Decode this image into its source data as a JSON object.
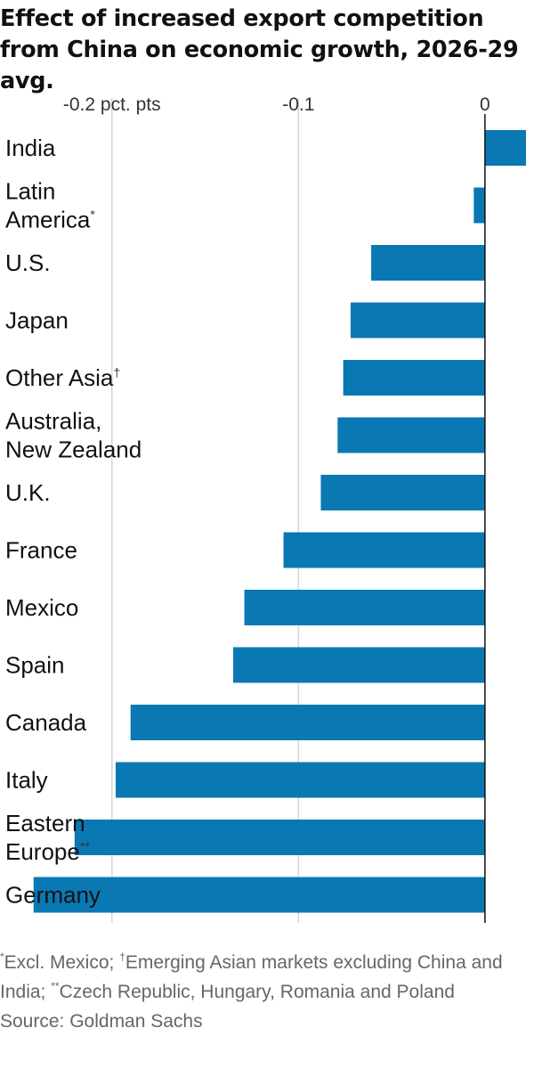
{
  "title": "Effect of increased export competition from China on economic growth, 2026-29 avg.",
  "colors": {
    "bar": "#0a78b2",
    "gridline": "#d6d6d6",
    "zero_line": "#111111"
  },
  "chart_data": {
    "type": "bar",
    "orientation": "horizontal",
    "title": "Effect of increased export competition from China on economic growth, 2026-29 avg.",
    "xlabel": "",
    "ylabel": "",
    "unit": "pct. pts",
    "categories": [
      "India",
      "Latin America*",
      "U.S.",
      "Japan",
      "Other Asia†",
      "Australia, New Zealand",
      "U.K.",
      "France",
      "Mexico",
      "Spain",
      "Canada",
      "Italy",
      "Eastern Europe**",
      "Germany"
    ],
    "category_lines": [
      [
        {
          "text": "India"
        }
      ],
      [
        {
          "text": "Latin"
        }
      ],
      [
        {
          "text": "America"
        },
        {
          "text": "*",
          "sup": true
        }
      ],
      [
        {
          "text": "U.S."
        }
      ],
      [
        {
          "text": "Japan"
        }
      ],
      [
        {
          "text": "Other Asia"
        },
        {
          "text": "†",
          "sup": true
        }
      ],
      [
        {
          "text": "Australia,"
        }
      ],
      [
        {
          "text": "New Zealand"
        }
      ],
      [
        {
          "text": "U.K."
        }
      ],
      [
        {
          "text": "France"
        }
      ],
      [
        {
          "text": "Mexico"
        }
      ],
      [
        {
          "text": "Spain"
        }
      ],
      [
        {
          "text": "Canada"
        }
      ],
      [
        {
          "text": "Italy"
        }
      ],
      [
        {
          "text": "Eastern"
        }
      ],
      [
        {
          "text": "Europe"
        },
        {
          "text": "**",
          "sup": true
        }
      ],
      [
        {
          "text": "Germany"
        }
      ]
    ],
    "category_line_counts": [
      1,
      2,
      1,
      1,
      1,
      2,
      1,
      1,
      1,
      1,
      1,
      1,
      2,
      1
    ],
    "values": [
      0.022,
      -0.006,
      -0.061,
      -0.072,
      -0.076,
      -0.079,
      -0.088,
      -0.108,
      -0.129,
      -0.135,
      -0.19,
      -0.198,
      -0.22,
      -0.242
    ],
    "xlim": [
      -0.26,
      0.022
    ],
    "xticks": [
      {
        "value": -0.2,
        "label": "-0.2 pct. pts"
      },
      {
        "value": -0.1,
        "label": "-0.1"
      },
      {
        "value": 0,
        "label": "0"
      }
    ],
    "grid": true,
    "legend": "none"
  },
  "footnotes": {
    "line1": [
      {
        "text": "*",
        "sup": true
      },
      {
        "text": "Excl. Mexico; "
      },
      {
        "text": "†",
        "sup": true
      },
      {
        "text": "Emerging Asian markets excluding China and India; "
      },
      {
        "text": "**",
        "sup": true
      },
      {
        "text": "Czech Republic, Hungary, Romania and Poland"
      }
    ],
    "source": "Source: Goldman Sachs"
  }
}
